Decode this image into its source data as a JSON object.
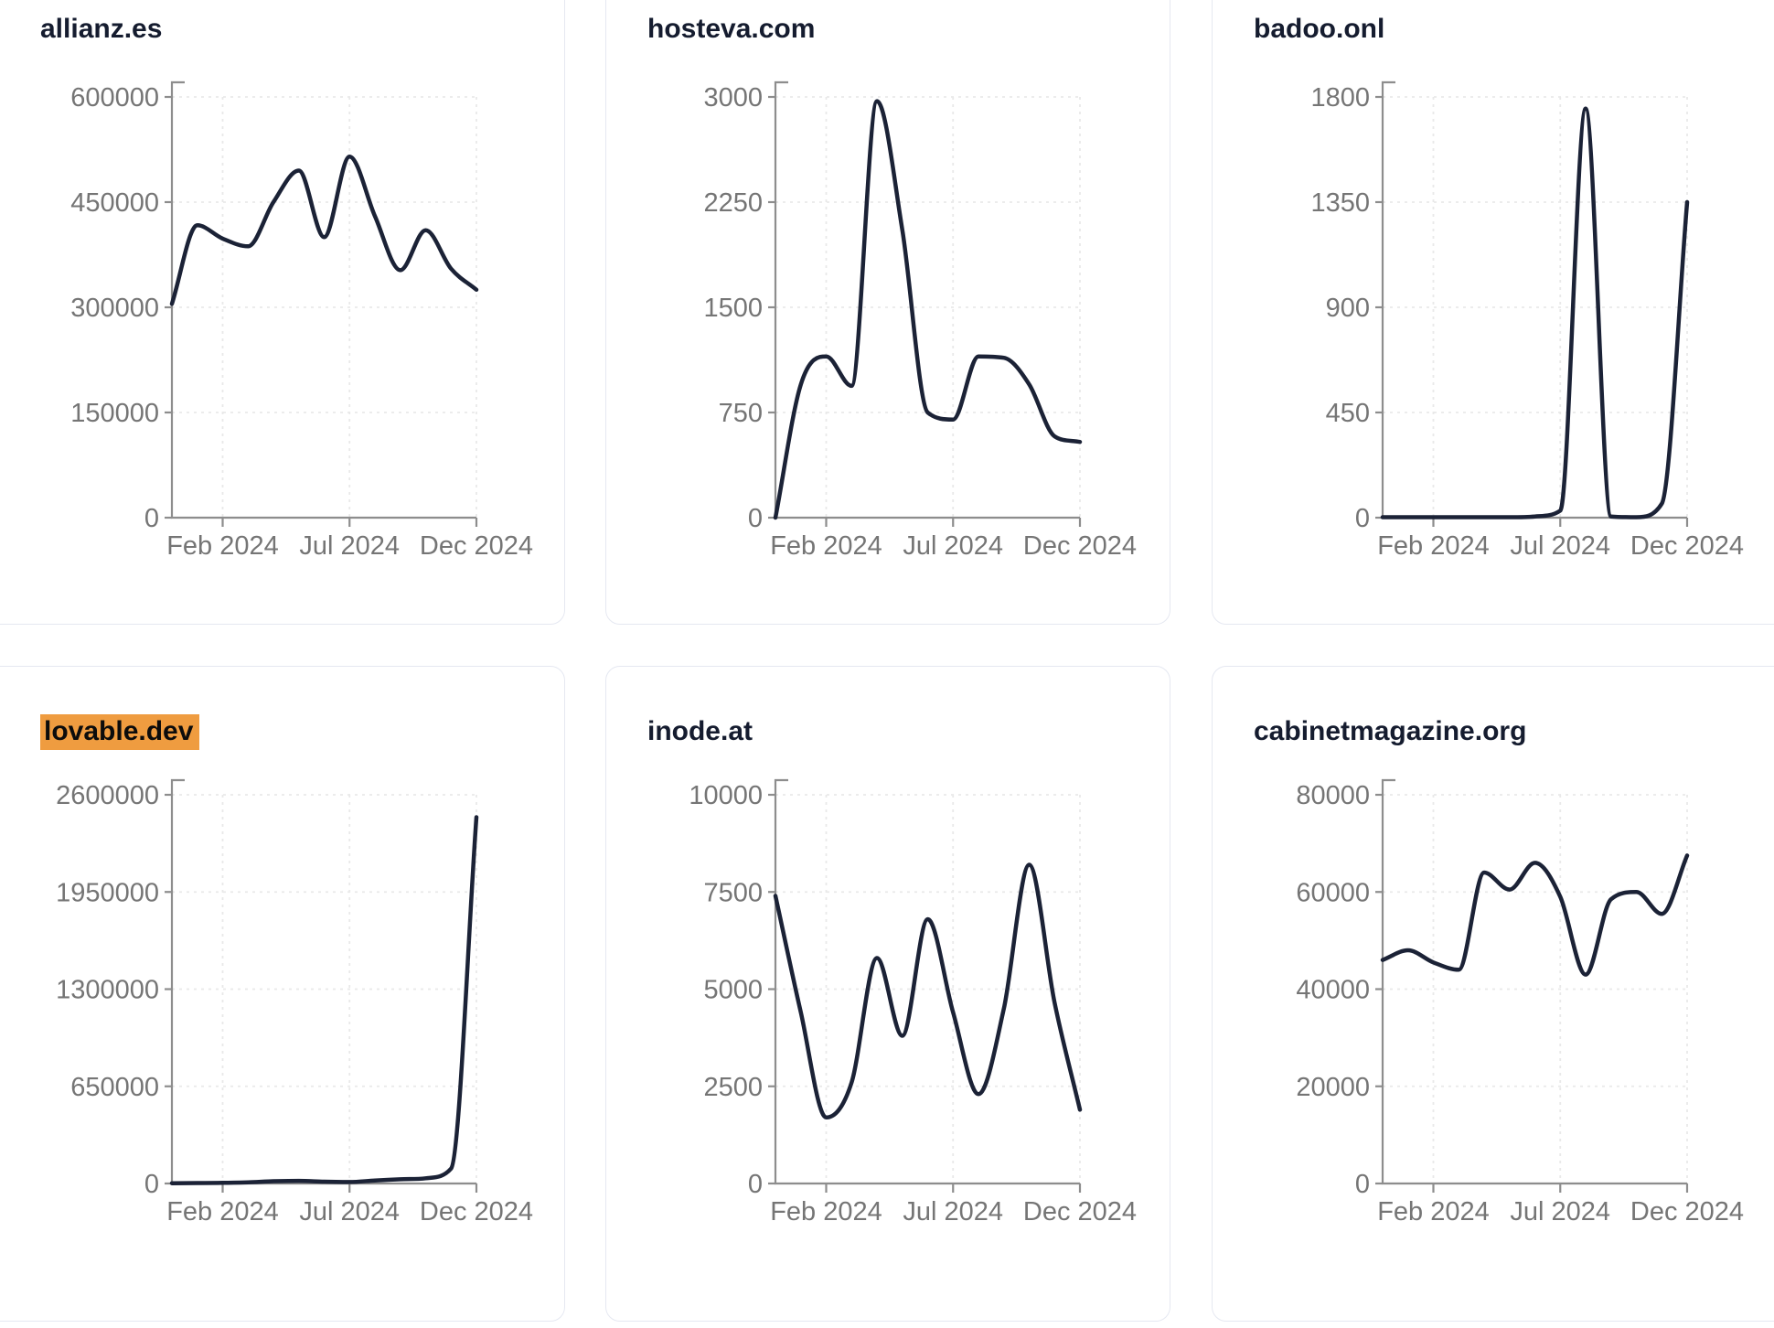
{
  "page": {
    "background": "#ffffff",
    "card_border_color": "#e5e8f1",
    "title_color": "#151c2f",
    "highlight_color": "#ef9c40",
    "line_color": "#1b2236",
    "axis_color": "#8d8d8d",
    "tick_label_color": "#757575",
    "grid_color": "#e9e9e9"
  },
  "chart_data": [
    {
      "type": "line",
      "title": "allianz.es",
      "title_highlighted": false,
      "x": [
        "Dec 2023",
        "Jan 2024",
        "Feb 2024",
        "Mar 2024",
        "Apr 2024",
        "May 2024",
        "Jun 2024",
        "Jul 2024",
        "Aug 2024",
        "Sep 2024",
        "Oct 2024",
        "Nov 2024",
        "Dec 2024"
      ],
      "x_tick_labels": [
        "Feb 2024",
        "Jul 2024",
        "Dec 2024"
      ],
      "y_ticks": [
        0,
        150000,
        300000,
        450000,
        600000
      ],
      "ylim": [
        0,
        600000
      ],
      "values": [
        305000,
        417000,
        398000,
        387000,
        450000,
        495000,
        400000,
        515000,
        430000,
        353000,
        410000,
        355000,
        325000
      ],
      "grid": true,
      "legend": "none"
    },
    {
      "type": "line",
      "title": "hosteva.com",
      "title_highlighted": false,
      "x": [
        "Dec 2023",
        "Jan 2024",
        "Feb 2024",
        "Mar 2024",
        "Apr 2024",
        "May 2024",
        "Jun 2024",
        "Jul 2024",
        "Aug 2024",
        "Sep 2024",
        "Oct 2024",
        "Nov 2024",
        "Dec 2024"
      ],
      "x_tick_labels": [
        "Feb 2024",
        "Jul 2024",
        "Dec 2024"
      ],
      "y_ticks": [
        0,
        750,
        1500,
        2250,
        3000
      ],
      "ylim": [
        0,
        3000
      ],
      "values": [
        0,
        950,
        1150,
        940,
        2970,
        2050,
        750,
        700,
        1150,
        1140,
        950,
        580,
        540
      ],
      "grid": true,
      "legend": "none"
    },
    {
      "type": "line",
      "title": "badoo.onl",
      "title_highlighted": false,
      "x": [
        "Dec 2023",
        "Jan 2024",
        "Feb 2024",
        "Mar 2024",
        "Apr 2024",
        "May 2024",
        "Jun 2024",
        "Jul 2024",
        "Aug 2024",
        "Sep 2024",
        "Oct 2024",
        "Nov 2024",
        "Dec 2024"
      ],
      "x_tick_labels": [
        "Feb 2024",
        "Jul 2024",
        "Dec 2024"
      ],
      "y_ticks": [
        0,
        450,
        900,
        1350,
        1800
      ],
      "ylim": [
        0,
        1800
      ],
      "values": [
        2,
        2,
        2,
        2,
        2,
        2,
        5,
        30,
        1750,
        5,
        2,
        60,
        1350
      ],
      "grid": true,
      "legend": "none"
    },
    {
      "type": "line",
      "title": "lovable.dev",
      "title_highlighted": true,
      "x": [
        "Dec 2023",
        "Jan 2024",
        "Feb 2024",
        "Mar 2024",
        "Apr 2024",
        "May 2024",
        "Jun 2024",
        "Jul 2024",
        "Aug 2024",
        "Sep 2024",
        "Oct 2024",
        "Nov 2024",
        "Dec 2024"
      ],
      "x_tick_labels": [
        "Feb 2024",
        "Jul 2024",
        "Dec 2024"
      ],
      "y_ticks": [
        0,
        650000,
        1300000,
        1950000,
        2600000
      ],
      "ylim": [
        0,
        2600000
      ],
      "values": [
        2000,
        3000,
        4000,
        8000,
        15000,
        18000,
        12000,
        10000,
        20000,
        28000,
        35000,
        100000,
        2450000
      ],
      "grid": true,
      "legend": "none"
    },
    {
      "type": "line",
      "title": "inode.at",
      "title_highlighted": false,
      "x": [
        "Dec 2023",
        "Jan 2024",
        "Feb 2024",
        "Mar 2024",
        "Apr 2024",
        "May 2024",
        "Jun 2024",
        "Jul 2024",
        "Aug 2024",
        "Sep 2024",
        "Oct 2024",
        "Nov 2024",
        "Dec 2024"
      ],
      "x_tick_labels": [
        "Feb 2024",
        "Jul 2024",
        "Dec 2024"
      ],
      "y_ticks": [
        0,
        2500,
        5000,
        7500,
        10000
      ],
      "ylim": [
        0,
        10000
      ],
      "values": [
        7400,
        4400,
        1700,
        2600,
        5800,
        3800,
        6800,
        4400,
        2300,
        4500,
        8200,
        4650,
        1900
      ],
      "grid": true,
      "legend": "none"
    },
    {
      "type": "line",
      "title": "cabinetmagazine.org",
      "title_highlighted": false,
      "x": [
        "Dec 2023",
        "Jan 2024",
        "Feb 2024",
        "Mar 2024",
        "Apr 2024",
        "May 2024",
        "Jun 2024",
        "Jul 2024",
        "Aug 2024",
        "Sep 2024",
        "Oct 2024",
        "Nov 2024",
        "Dec 2024"
      ],
      "x_tick_labels": [
        "Feb 2024",
        "Jul 2024",
        "Dec 2024"
      ],
      "y_ticks": [
        0,
        20000,
        40000,
        60000,
        80000
      ],
      "ylim": [
        0,
        80000
      ],
      "values": [
        46000,
        48000,
        45500,
        44000,
        64000,
        60500,
        66000,
        59000,
        43000,
        58500,
        60000,
        55500,
        67500
      ],
      "grid": true,
      "legend": "none"
    }
  ]
}
